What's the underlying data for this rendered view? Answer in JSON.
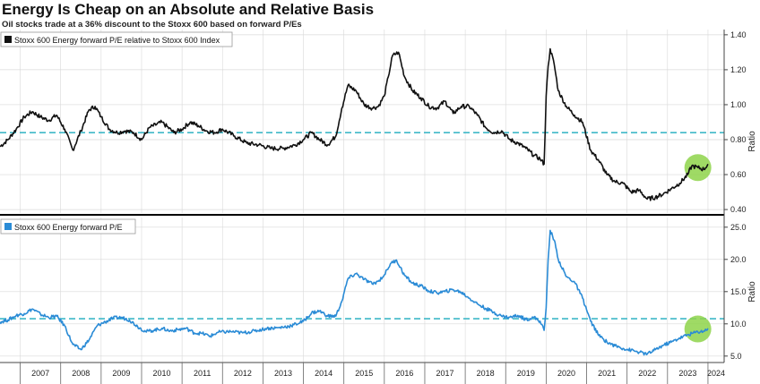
{
  "title": "Energy Is Cheap on an Absolute and Relative Basis",
  "subtitle": "Oil stocks trade at a 36% discount to the Stoxx 600 based on forward P/Es",
  "colors": {
    "panel1_line": "#111111",
    "panel2_line": "#2a8bd6",
    "average_dashed": "#3fb8c8",
    "highlight_circle": "#8ed34a",
    "grid": "#d9d9d9",
    "divider": "#000000"
  },
  "chart_data": [
    {
      "type": "line",
      "legend": "Stoxx 600 Energy forward P/E relative to Stoxx 600 Index",
      "ylabel": "Ratio",
      "ylim": [
        0.38,
        1.43
      ],
      "yticks": [
        "1.40",
        "1.20",
        "1.00",
        "0.80",
        "0.60",
        "0.40"
      ],
      "ytick_values": [
        1.4,
        1.2,
        1.0,
        0.8,
        0.6,
        0.4
      ],
      "average_line": 0.84,
      "highlight": {
        "x": 2023.75,
        "y": 0.64
      },
      "series": [
        {
          "x": [
            2006.5,
            2006.7,
            2006.9,
            2007.1,
            2007.3,
            2007.5,
            2007.7,
            2007.9,
            2008.1,
            2008.3,
            2008.5,
            2008.7,
            2008.85,
            2009.0,
            2009.2,
            2009.4,
            2009.6,
            2009.8,
            2010.0,
            2010.2,
            2010.5,
            2010.8,
            2011.0,
            2011.2,
            2011.4,
            2011.6,
            2011.8,
            2012.0,
            2012.3,
            2012.6,
            2012.9,
            2013.2,
            2013.5,
            2013.8,
            2014.0,
            2014.2,
            2014.4,
            2014.6,
            2014.8,
            2014.95,
            2015.1,
            2015.3,
            2015.5,
            2015.7,
            2015.85,
            2016.0,
            2016.1,
            2016.2,
            2016.35,
            2016.5,
            2016.7,
            2016.9,
            2017.1,
            2017.3,
            2017.5,
            2017.7,
            2017.9,
            2018.1,
            2018.3,
            2018.5,
            2018.7,
            2018.9,
            2019.1,
            2019.3,
            2019.5,
            2019.7,
            2019.85,
            2019.95,
            2020.0,
            2020.05,
            2020.1,
            2020.2,
            2020.3,
            2020.5,
            2020.7,
            2020.9,
            2021.1,
            2021.3,
            2021.5,
            2021.7,
            2021.9,
            2022.1,
            2022.3,
            2022.5,
            2022.7,
            2022.9,
            2023.1,
            2023.3,
            2023.5,
            2023.6,
            2023.75,
            2023.9,
            2024.0
          ],
          "y": [
            0.76,
            0.8,
            0.86,
            0.93,
            0.96,
            0.93,
            0.91,
            0.94,
            0.86,
            0.74,
            0.85,
            0.97,
            0.99,
            0.93,
            0.86,
            0.84,
            0.85,
            0.84,
            0.8,
            0.87,
            0.9,
            0.84,
            0.86,
            0.9,
            0.88,
            0.85,
            0.84,
            0.86,
            0.82,
            0.78,
            0.77,
            0.75,
            0.75,
            0.77,
            0.8,
            0.84,
            0.8,
            0.77,
            0.82,
            0.98,
            1.11,
            1.08,
            1.0,
            0.98,
            0.99,
            1.05,
            1.16,
            1.28,
            1.3,
            1.16,
            1.08,
            1.04,
            0.99,
            0.98,
            1.02,
            0.95,
            0.99,
            0.99,
            0.94,
            0.87,
            0.84,
            0.85,
            0.8,
            0.78,
            0.75,
            0.71,
            0.69,
            0.66,
            1.05,
            1.22,
            1.32,
            1.23,
            1.08,
            0.99,
            0.94,
            0.9,
            0.74,
            0.68,
            0.6,
            0.56,
            0.55,
            0.5,
            0.51,
            0.46,
            0.47,
            0.49,
            0.52,
            0.55,
            0.6,
            0.65,
            0.64,
            0.63,
            0.66
          ]
        }
      ]
    },
    {
      "type": "line",
      "legend": "Stoxx 600 Energy forward P/E",
      "ylabel": "Ratio",
      "ylim": [
        4.0,
        26.5
      ],
      "yticks": [
        "25.0",
        "20.0",
        "15.0",
        "10.0",
        "5.0"
      ],
      "ytick_values": [
        25,
        20,
        15,
        10,
        5
      ],
      "average_line": 10.8,
      "highlight": {
        "x": 2023.75,
        "y": 9.2
      },
      "series": [
        {
          "x": [
            2006.5,
            2006.7,
            2006.9,
            2007.1,
            2007.3,
            2007.5,
            2007.7,
            2007.9,
            2008.1,
            2008.3,
            2008.5,
            2008.7,
            2008.9,
            2009.1,
            2009.3,
            2009.5,
            2009.7,
            2009.9,
            2010.1,
            2010.3,
            2010.5,
            2010.7,
            2010.9,
            2011.1,
            2011.3,
            2011.5,
            2011.7,
            2011.9,
            2012.2,
            2012.5,
            2012.8,
            2013.1,
            2013.4,
            2013.7,
            2014.0,
            2014.2,
            2014.4,
            2014.6,
            2014.8,
            2014.95,
            2015.1,
            2015.3,
            2015.5,
            2015.7,
            2015.85,
            2016.0,
            2016.15,
            2016.3,
            2016.5,
            2016.7,
            2016.9,
            2017.1,
            2017.3,
            2017.5,
            2017.7,
            2017.9,
            2018.1,
            2018.3,
            2018.5,
            2018.7,
            2018.9,
            2019.1,
            2019.3,
            2019.5,
            2019.7,
            2019.85,
            2019.95,
            2020.0,
            2020.05,
            2020.1,
            2020.2,
            2020.3,
            2020.5,
            2020.7,
            2020.9,
            2021.1,
            2021.3,
            2021.5,
            2021.7,
            2021.9,
            2022.1,
            2022.3,
            2022.5,
            2022.7,
            2022.9,
            2023.1,
            2023.3,
            2023.5,
            2023.7,
            2023.9,
            2024.0
          ],
          "y": [
            10.3,
            10.6,
            11.3,
            11.6,
            12.3,
            11.5,
            11.0,
            11.2,
            9.7,
            6.8,
            6.0,
            7.5,
            9.7,
            10.3,
            10.9,
            11.0,
            10.6,
            9.6,
            8.8,
            9.0,
            9.3,
            8.9,
            9.1,
            9.3,
            8.6,
            8.5,
            8.1,
            8.7,
            8.8,
            8.6,
            8.9,
            9.3,
            9.4,
            9.7,
            10.4,
            11.7,
            12.0,
            11.2,
            11.2,
            13.5,
            17.0,
            17.8,
            16.9,
            16.2,
            16.6,
            17.6,
            19.3,
            19.9,
            17.5,
            16.3,
            15.9,
            15.1,
            14.8,
            15.0,
            15.3,
            14.9,
            14.0,
            13.1,
            12.4,
            11.8,
            11.2,
            11.0,
            11.3,
            10.7,
            11.0,
            10.4,
            9.0,
            12.5,
            20.0,
            24.5,
            23.0,
            20.0,
            17.3,
            16.5,
            14.0,
            10.4,
            8.2,
            7.2,
            6.6,
            6.2,
            5.9,
            5.6,
            5.3,
            6.0,
            6.7,
            7.2,
            7.8,
            8.3,
            8.7,
            8.9,
            9.3
          ]
        }
      ]
    }
  ],
  "x_axis": {
    "labels": [
      "2007",
      "2008",
      "2009",
      "2010",
      "2011",
      "2012",
      "2013",
      "2014",
      "2015",
      "2016",
      "2017",
      "2018",
      "2019",
      "2020",
      "2021",
      "2022",
      "2023",
      "2024"
    ]
  }
}
